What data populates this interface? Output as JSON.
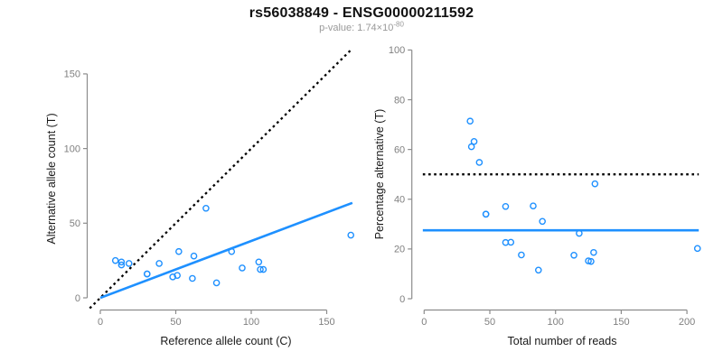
{
  "header": {
    "title": "rs56038849 - ENSG00000211592",
    "subtitle_prefix": "p-value: 1.74×10",
    "subtitle_exponent": "-80"
  },
  "colors": {
    "accent_blue": "#1E90FF",
    "dotted_black": "#000000",
    "axis_gray": "#8C8C8C",
    "tick_label_gray": "#7F7F7F",
    "title_black": "#111111",
    "subtitle_gray": "#999999"
  },
  "chart_data": [
    {
      "type": "scatter",
      "panel": "allele-counts",
      "xlabel": "Reference allele count (C)",
      "ylabel": "Alternative allele count (T)",
      "xlim": [
        0,
        167
      ],
      "ylim": [
        0,
        166
      ],
      "xticks": [
        0,
        50,
        100,
        150
      ],
      "yticks": [
        0,
        50,
        100,
        150
      ],
      "grid": false,
      "legend": "none",
      "marker": "open-circle",
      "points": [
        [
          10,
          25
        ],
        [
          14,
          24
        ],
        [
          14,
          22
        ],
        [
          19,
          23
        ],
        [
          31,
          16
        ],
        [
          31,
          16
        ],
        [
          39,
          23
        ],
        [
          48,
          14
        ],
        [
          51,
          15
        ],
        [
          52,
          31
        ],
        [
          62,
          28
        ],
        [
          61,
          13
        ],
        [
          70,
          60
        ],
        [
          77,
          10
        ],
        [
          87,
          31
        ],
        [
          94,
          20
        ],
        [
          105,
          24
        ],
        [
          106,
          19
        ],
        [
          108,
          19
        ],
        [
          166,
          42
        ]
      ],
      "lines": [
        {
          "name": "identity-line",
          "style": "dotted",
          "color": "black",
          "x1": -7,
          "y1": -7,
          "x2": 166.5,
          "y2": 166.5
        },
        {
          "name": "regression-line",
          "style": "solid",
          "color": "blue",
          "x1": 0,
          "y1": 0,
          "x2": 167,
          "y2": 63.6
        }
      ]
    },
    {
      "type": "scatter",
      "panel": "percentage-vs-reads",
      "xlabel": "Total number of reads",
      "ylabel": "Percentage alternative (T)",
      "xlim": [
        0,
        209
      ],
      "ylim": [
        0,
        100
      ],
      "xticks": [
        0,
        50,
        100,
        150,
        200
      ],
      "yticks": [
        0,
        20,
        40,
        60,
        80,
        100
      ],
      "grid": false,
      "legend": "none",
      "marker": "open-circle",
      "points": [
        [
          35,
          71.4
        ],
        [
          38,
          63.2
        ],
        [
          36,
          61.1
        ],
        [
          42,
          54.8
        ],
        [
          47,
          34
        ],
        [
          47,
          34
        ],
        [
          62,
          37.1
        ],
        [
          62,
          22.6
        ],
        [
          66,
          22.7
        ],
        [
          83,
          37.3
        ],
        [
          90,
          31.1
        ],
        [
          74,
          17.6
        ],
        [
          130,
          46.2
        ],
        [
          87,
          11.5
        ],
        [
          118,
          26.3
        ],
        [
          114,
          17.5
        ],
        [
          129,
          18.6
        ],
        [
          125,
          15.2
        ],
        [
          127,
          15
        ],
        [
          208,
          20.2
        ]
      ],
      "lines": [
        {
          "name": "fifty-percent-line",
          "style": "dotted",
          "color": "black",
          "x1": -1,
          "y1": 50,
          "x2": 209,
          "y2": 50
        },
        {
          "name": "mean-percentage-line",
          "style": "solid",
          "color": "blue",
          "x1": -1,
          "y1": 27.5,
          "x2": 209,
          "y2": 27.5
        }
      ]
    }
  ]
}
